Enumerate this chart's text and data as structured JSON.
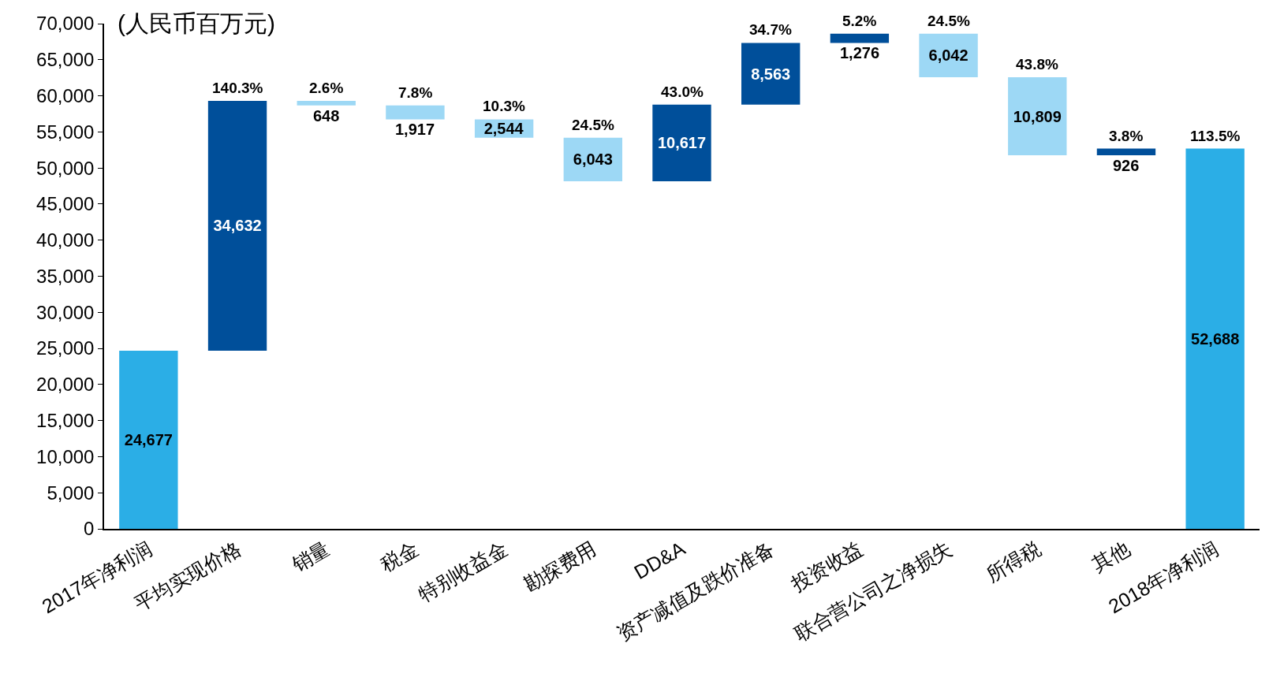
{
  "chart_data": {
    "type": "bar",
    "ylabel": "(人民币百万元)",
    "categories": [
      "2017年净利润",
      "平均实现价格",
      "销量",
      "税金",
      "特别收益金",
      "勘探费用",
      "DD&A",
      "资产减值及跌价准备",
      "投资收益",
      "联合营公司之净损失",
      "所得税",
      "其他",
      "2018年净利润"
    ],
    "values": [
      24677,
      34632,
      648,
      1917,
      2544,
      6043,
      10617,
      8563,
      1276,
      6042,
      10809,
      926,
      52688
    ],
    "base": [
      0,
      24677,
      58661,
      56744,
      54200,
      48157,
      48157,
      58774,
      67337,
      62571,
      51762,
      51762,
      0
    ],
    "colors": [
      "#2baee6",
      "#004f9a",
      "#9dd8f5",
      "#9dd8f5",
      "#9dd8f5",
      "#9dd8f5",
      "#004f9a",
      "#004f9a",
      "#004f9a",
      "#9dd8f5",
      "#9dd8f5",
      "#004f9a",
      "#2baee6"
    ],
    "value_labels": [
      "24,677",
      "34,632",
      "648",
      "1,917",
      "2,544",
      "6,043",
      "10,617",
      "8,563",
      "1,276",
      "6,042",
      "10,809",
      "926",
      "52,688"
    ],
    "annotations": [
      {
        "text": "140.3%",
        "x": "平均实现价格",
        "y": 59309
      },
      {
        "text": "2.6%",
        "x": "销量",
        "y": 59309
      },
      {
        "text": "7.8%",
        "x": "税金",
        "y": 58661
      },
      {
        "text": "10.3%",
        "x": "特别收益金",
        "y": 56744
      },
      {
        "text": "24.5%",
        "x": "勘探费用",
        "y": 54200
      },
      {
        "text": "43.0%",
        "x": "DD&A",
        "y": 58774
      },
      {
        "text": "34.7%",
        "x": "资产减值及跌价准备",
        "y": 67337
      },
      {
        "text": "5.2%",
        "x": "投资收益",
        "y": 68613
      },
      {
        "text": "24.5%",
        "x": "联合营公司之净损失",
        "y": 68613
      },
      {
        "text": "43.8%",
        "x": "所得税",
        "y": 62571
      },
      {
        "text": "3.8%",
        "x": "其他",
        "y": 52688
      },
      {
        "text": "113.5%",
        "x": "2018年净利润",
        "y": 52688
      }
    ],
    "ylim": [
      0,
      70000
    ],
    "yticks": [
      {
        "value": 0,
        "label": "0"
      },
      {
        "value": 5000,
        "label": "5,000"
      },
      {
        "value": 10000,
        "label": "10,000"
      },
      {
        "value": 15000,
        "label": "15,000"
      },
      {
        "value": 20000,
        "label": "20,000"
      },
      {
        "value": 25000,
        "label": "25,000"
      },
      {
        "value": 30000,
        "label": "30,000"
      },
      {
        "value": 35000,
        "label": "35,000"
      },
      {
        "value": 40000,
        "label": "40,000"
      },
      {
        "value": 45000,
        "label": "45,000"
      },
      {
        "value": 50000,
        "label": "50,000"
      },
      {
        "value": 55000,
        "label": "55,000"
      },
      {
        "value": 60000,
        "label": "60,000"
      },
      {
        "value": 65000,
        "label": "65,000"
      },
      {
        "value": 70000,
        "label": "70,000"
      }
    ],
    "grid": false
  }
}
